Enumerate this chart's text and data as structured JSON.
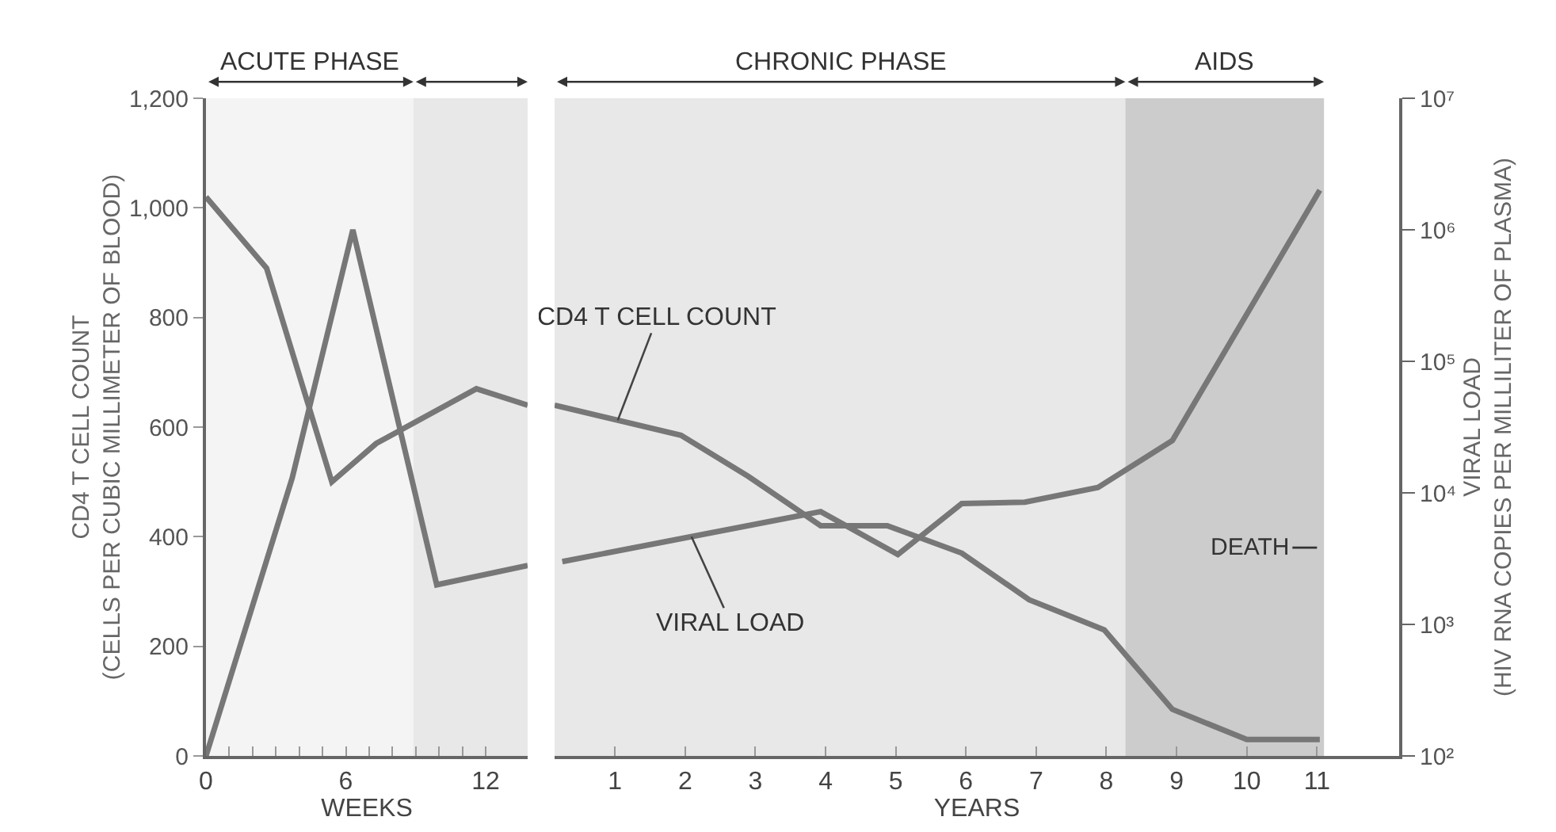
{
  "chart_data": [
    {
      "type": "line",
      "xlabel": "WEEKS",
      "ylabel": "CD4 T CELL COUNT\n(CELLS PER CUBIC MILLIMETER OF BLOOD)",
      "log": "y2",
      "xlim": [
        0,
        13.8
      ],
      "xticks": [
        0,
        {
          "value": 1,
          "label": null
        },
        {
          "value": 2,
          "label": null
        },
        {
          "value": 3,
          "label": null
        },
        {
          "value": 4,
          "label": null
        },
        {
          "value": 5,
          "label": null
        },
        6,
        {
          "value": 7,
          "label": null
        },
        {
          "value": 8,
          "label": null
        },
        {
          "value": 9,
          "label": null
        },
        {
          "value": 10,
          "label": null
        },
        {
          "value": 11,
          "label": null
        },
        12
      ],
      "ylim": [
        0,
        1200
      ],
      "yticks": [
        0,
        200,
        400,
        600,
        800,
        {
          "value": 1000,
          "label": "1,000"
        },
        {
          "value": 1200,
          "label": "1,200"
        }
      ],
      "y2lim": [
        100,
        10000000
      ],
      "tick_labels": [
        "x",
        "y"
      ],
      "bands": [
        {
          "axis": "x",
          "from": 0,
          "to": 8.9,
          "label": "ACUTE PHASE",
          "color": "#f4f4f4"
        },
        {
          "axis": "x",
          "from": 8.9,
          "to": 13.8,
          "label": null,
          "color": "#e8e8e8"
        }
      ],
      "series": [
        {
          "color": "#777777",
          "x": [
            0,
            2.6,
            5.4,
            7.3,
            11.6,
            13.8
          ],
          "values": [
            1020,
            890,
            500,
            570,
            670,
            640
          ]
        },
        {
          "color": "#777777",
          "axis": "y2",
          "x": [
            0,
            3.7,
            6.3,
            9.9,
            13.8
          ],
          "values": [
            100,
            13000,
            1000000,
            2000,
            2800
          ]
        }
      ]
    },
    {
      "type": "line",
      "xlabel": "YEARS",
      "y2label": "VIRAL LOAD\n(HIV RNA COPIES PER MILLILITER OF PLASMA)",
      "log": "y2",
      "xlim": [
        0.14,
        12.17
      ],
      "xticks": [
        1,
        2,
        3,
        4,
        5,
        6,
        7,
        8,
        9,
        10,
        11
      ],
      "ylim": [
        0,
        1200
      ],
      "y2lim": [
        100,
        10000000
      ],
      "y2ticks": [
        {
          "value": 100,
          "label": "10²"
        },
        {
          "value": 1000,
          "label": "10³"
        },
        {
          "value": 10000,
          "label": "10⁴"
        },
        {
          "value": 100000,
          "label": "10⁵"
        },
        {
          "value": 1000000,
          "label": "10⁶"
        },
        {
          "value": 10000000,
          "label": "10⁷"
        }
      ],
      "tick_labels": [
        "x",
        "y2"
      ],
      "bands": [
        {
          "axis": "x",
          "from": 0.14,
          "to": 8.27,
          "label": "CHRONIC PHASE",
          "color": "#e8e8e8"
        },
        {
          "axis": "x",
          "from": 8.27,
          "to": 11.1,
          "label": "AIDS",
          "color": "#cccccc"
        }
      ],
      "annotations": [
        {
          "text": "DEATH",
          "x": 11,
          "y": 380
        }
      ],
      "series": [
        {
          "name": "CD4 T CELL COUNT",
          "color": "#777777",
          "x": [
            0.14,
            1.94,
            2.9,
            3.93,
            4.88,
            5.94,
            6.9,
            7.97,
            8.94,
            10.0,
            11.04
          ],
          "values": [
            640,
            585,
            510,
            420,
            420,
            370,
            285,
            230,
            85,
            30,
            30
          ]
        },
        {
          "name": "VIRAL LOAD",
          "color": "#777777",
          "axis": "y2",
          "x": [
            0.25,
            3.93,
            5.03,
            5.94,
            6.84,
            7.88,
            8.94,
            11.04
          ],
          "values": [
            3000,
            7200,
            3400,
            8300,
            8500,
            11000,
            25000,
            2000000
          ]
        }
      ]
    }
  ]
}
